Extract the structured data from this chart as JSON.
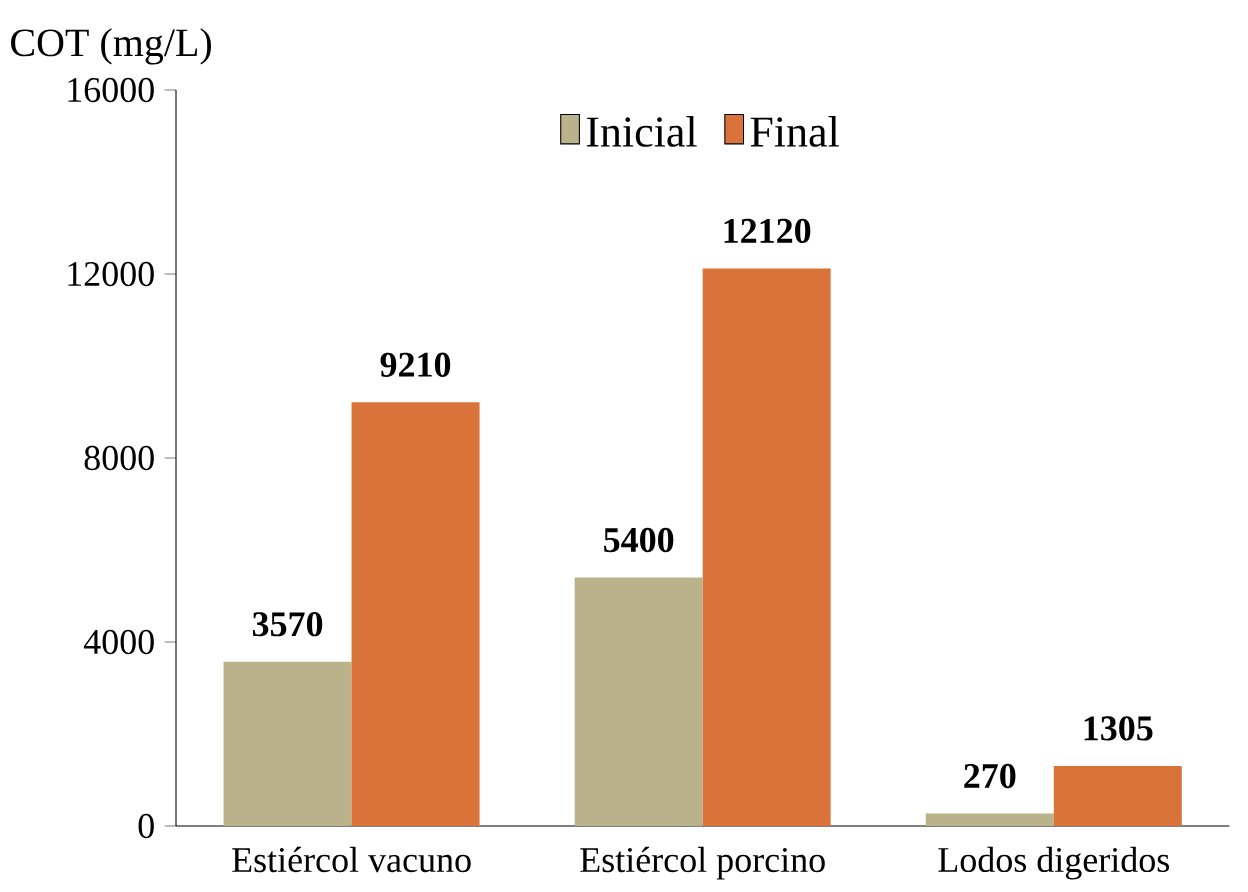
{
  "chart_data": {
    "type": "bar",
    "ylabel": "COT (mg/L)",
    "categories": [
      "Estiércol vacuno",
      "Estiércol porcino",
      "Lodos digeridos"
    ],
    "series": [
      {
        "name": "Inicial",
        "color": "#b9b28a",
        "values": [
          3570,
          5400,
          270
        ]
      },
      {
        "name": "Final",
        "color": "#d9733a",
        "values": [
          9210,
          12120,
          1305
        ]
      }
    ],
    "ylim": [
      0,
      16000
    ],
    "yticks": [
      0,
      4000,
      8000,
      12000,
      16000
    ],
    "data_labels": true,
    "legend": "top",
    "grid": false
  }
}
